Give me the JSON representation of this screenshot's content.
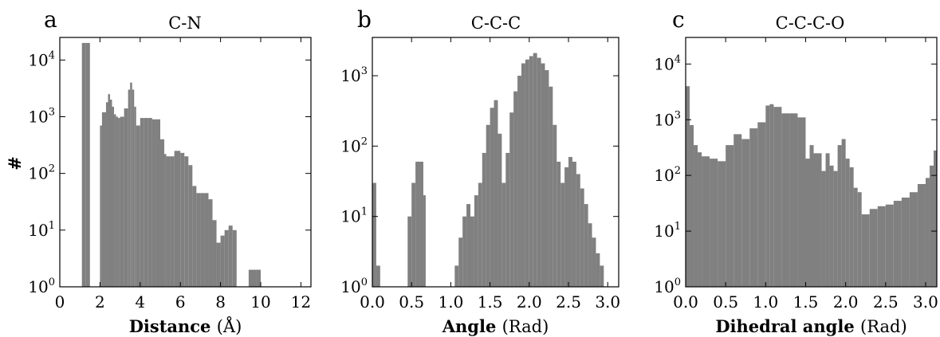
{
  "figure": {
    "ylabel": "#"
  },
  "chart_data": [
    {
      "type": "bar",
      "panel": "a",
      "title": "C-N",
      "xlabel": "Distance",
      "xlabel_unit": "(Å)",
      "ylabel": "#",
      "yscale": "log",
      "xlim": [
        0,
        12.5
      ],
      "ylim": [
        1,
        25000
      ],
      "xticks": [
        "0",
        "2",
        "4",
        "6",
        "8",
        "10",
        "12"
      ],
      "yticks": [
        "10^0",
        "10^1",
        "10^2",
        "10^3",
        "10^4"
      ],
      "color": "#808080",
      "series": [
        {
          "x": [
            1.0,
            1.1,
            1.3,
            1.5,
            1.7,
            1.9,
            2.0,
            2.1,
            2.3,
            2.4,
            2.5,
            2.6,
            2.7,
            2.8,
            2.9,
            3.0,
            3.2,
            3.4,
            3.5,
            3.6,
            3.7,
            3.8,
            4.0,
            4.2,
            4.4,
            4.6,
            4.8,
            5.0,
            5.2,
            5.3,
            5.5,
            5.7,
            6.0,
            6.2,
            6.4,
            6.6,
            6.8,
            7.0,
            7.2,
            7.4,
            7.6,
            7.8,
            8.0,
            8.2,
            8.4,
            8.6,
            8.8,
            9.4,
            9.8,
            10.0
          ],
          "values": [
            1,
            20000,
            20000,
            1,
            1,
            1,
            700,
            1200,
            1800,
            2500,
            2000,
            1500,
            1100,
            1000,
            950,
            1000,
            1400,
            3000,
            4000,
            3000,
            1500,
            700,
            950,
            950,
            950,
            900,
            900,
            400,
            220,
            200,
            200,
            250,
            230,
            200,
            140,
            60,
            45,
            45,
            45,
            35,
            15,
            6,
            8,
            10,
            12,
            10,
            1,
            2,
            2,
            1
          ]
        }
      ]
    },
    {
      "type": "bar",
      "panel": "b",
      "title": "C-C-C",
      "xlabel": "Angle",
      "xlabel_unit": "(Rad)",
      "ylabel": "",
      "yscale": "log",
      "xlim": [
        0.0,
        3.14
      ],
      "ylim": [
        1,
        3500
      ],
      "xticks": [
        "0.0",
        "0.5",
        "1.0",
        "1.5",
        "2.0",
        "2.5",
        "3.0"
      ],
      "yticks": [
        "10^0",
        "10^1",
        "10^2",
        "10^3"
      ],
      "color": "#808080",
      "series": [
        {
          "x": [
            0.0,
            0.05,
            0.1,
            0.4,
            0.45,
            0.5,
            0.55,
            0.6,
            0.65,
            0.68,
            1.0,
            1.05,
            1.1,
            1.15,
            1.2,
            1.25,
            1.3,
            1.35,
            1.4,
            1.45,
            1.5,
            1.55,
            1.6,
            1.65,
            1.7,
            1.75,
            1.8,
            1.85,
            1.9,
            1.95,
            2.0,
            2.05,
            2.1,
            2.15,
            2.2,
            2.25,
            2.3,
            2.35,
            2.4,
            2.45,
            2.5,
            2.55,
            2.6,
            2.65,
            2.7,
            2.75,
            2.8,
            2.85,
            2.9,
            2.95,
            3.0,
            3.05,
            3.1
          ],
          "values": [
            30,
            2,
            1,
            1,
            10,
            30,
            60,
            60,
            20,
            1,
            1,
            2,
            5,
            10,
            15,
            10,
            20,
            30,
            80,
            200,
            350,
            450,
            150,
            30,
            80,
            300,
            600,
            1000,
            1500,
            1700,
            1900,
            2100,
            1800,
            1500,
            1200,
            700,
            200,
            60,
            30,
            50,
            70,
            60,
            40,
            25,
            15,
            8,
            5,
            3,
            2,
            1,
            1,
            1,
            1
          ]
        }
      ]
    },
    {
      "type": "bar",
      "panel": "c",
      "title": "C-C-C-O",
      "xlabel": "Dihedral angle",
      "xlabel_unit": "(Rad)",
      "ylabel": "",
      "yscale": "log",
      "xlim": [
        0.0,
        3.14
      ],
      "ylim": [
        1,
        30000
      ],
      "xticks": [
        "0.0",
        "0.5",
        "1.0",
        "1.5",
        "2.0",
        "2.5",
        "3.0"
      ],
      "yticks": [
        "10^0",
        "10^1",
        "10^2",
        "10^3",
        "10^4"
      ],
      "color": "#808080",
      "series": [
        {
          "x": [
            0.0,
            0.05,
            0.1,
            0.15,
            0.2,
            0.3,
            0.4,
            0.5,
            0.6,
            0.7,
            0.8,
            0.9,
            1.0,
            1.05,
            1.1,
            1.2,
            1.3,
            1.4,
            1.5,
            1.55,
            1.6,
            1.7,
            1.75,
            1.8,
            1.85,
            1.9,
            1.95,
            2.0,
            2.05,
            2.1,
            2.15,
            2.2,
            2.3,
            2.4,
            2.5,
            2.6,
            2.7,
            2.8,
            2.9,
            3.0,
            3.05,
            3.1,
            3.14
          ],
          "values": [
            4000,
            800,
            350,
            260,
            220,
            200,
            180,
            350,
            550,
            450,
            700,
            900,
            1800,
            1900,
            1700,
            1300,
            1300,
            1100,
            200,
            350,
            250,
            120,
            250,
            150,
            120,
            350,
            450,
            200,
            140,
            60,
            50,
            20,
            25,
            28,
            30,
            35,
            40,
            50,
            70,
            90,
            150,
            280,
            400
          ]
        }
      ]
    }
  ]
}
